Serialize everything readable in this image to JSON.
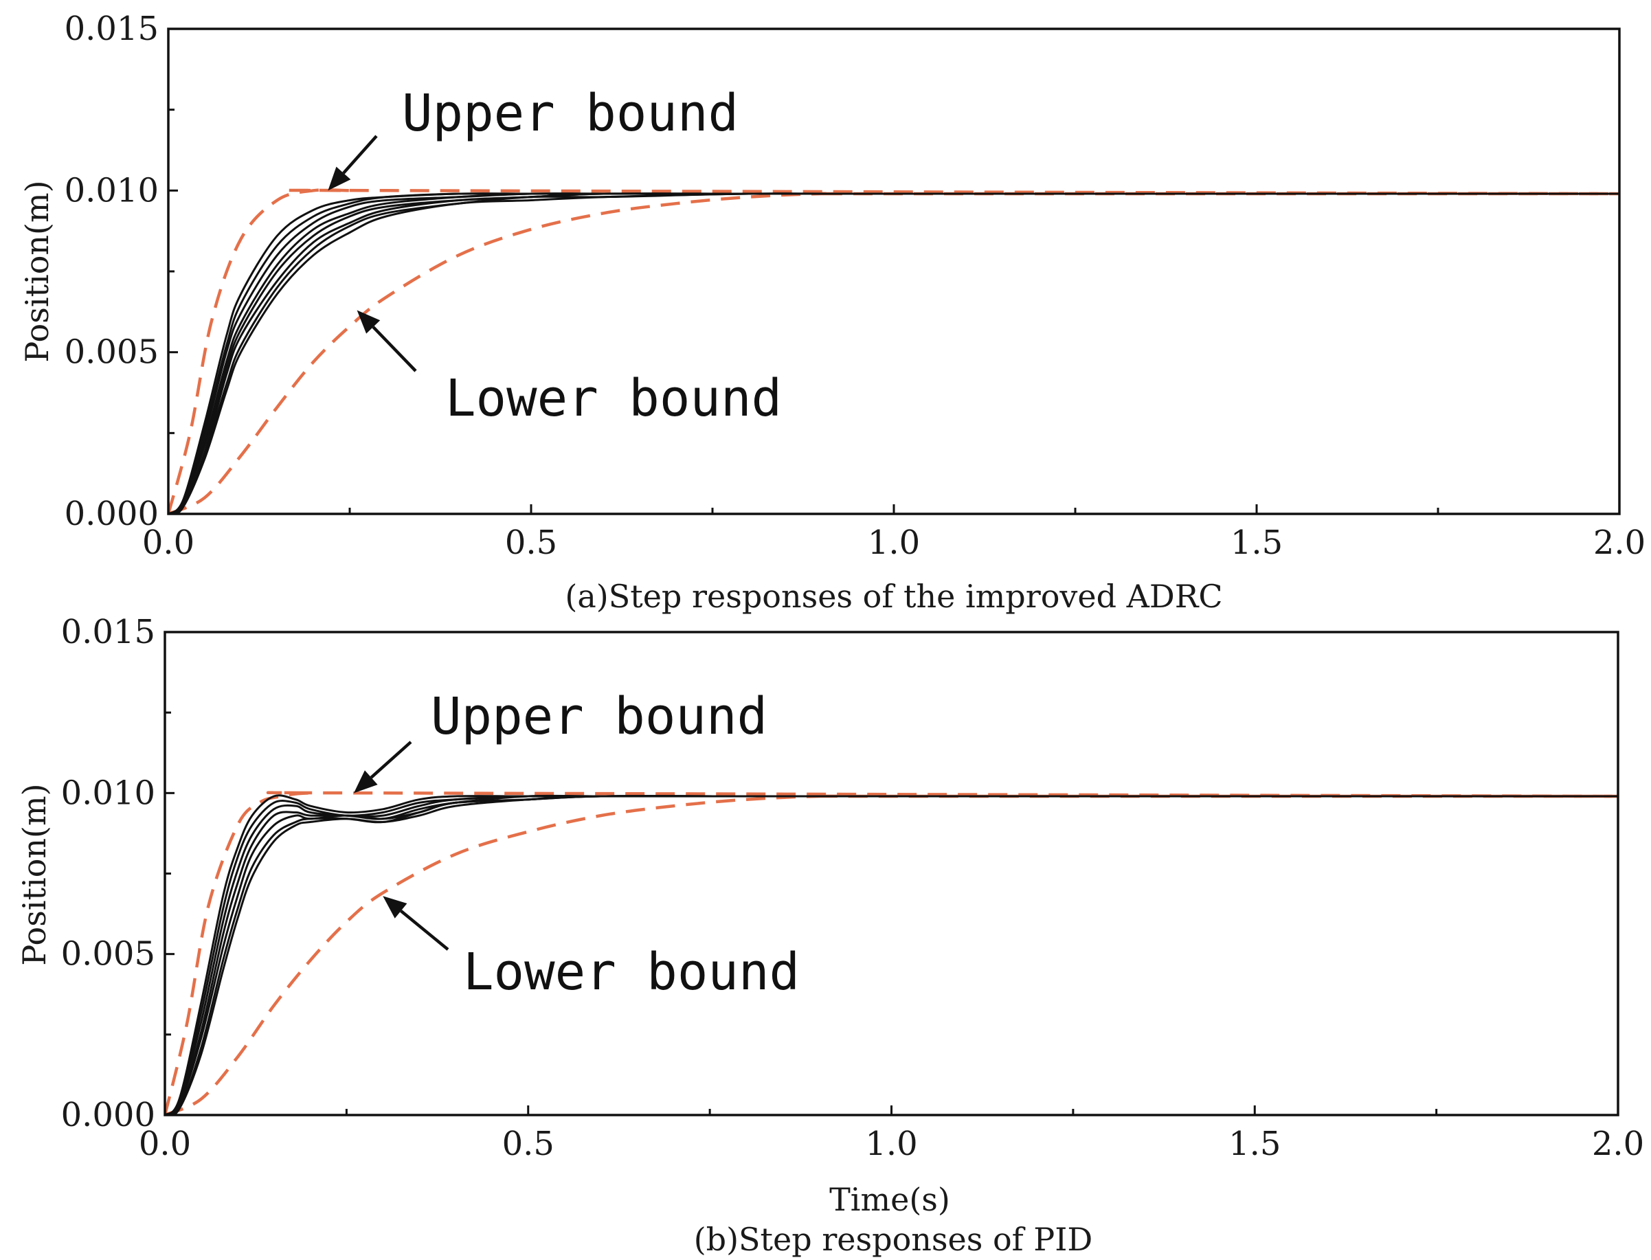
{
  "colors": {
    "bound": "#e4704a",
    "response": "#111111",
    "axis": "#111111"
  },
  "chart_data": [
    {
      "type": "line",
      "caption": "(a)Step responses of the improved ADRC",
      "xlabel": "",
      "ylabel": "Position(m)",
      "xlim": [
        0,
        2
      ],
      "ylim": [
        0,
        0.015
      ],
      "x_ticks": [
        "0.0",
        "0.5",
        "1.0",
        "1.5",
        "2.0"
      ],
      "y_ticks": [
        "0.000",
        "0.005",
        "0.010",
        "0.015"
      ],
      "grid": false,
      "annotations": [
        {
          "text": "Upper bound",
          "points_to": {
            "x": 0.22,
            "y": 0.01
          }
        },
        {
          "text": "Lower bound",
          "points_to": {
            "x": 0.26,
            "y": 0.0063
          }
        }
      ],
      "bounds": {
        "upper": {
          "x": [
            0,
            0.03,
            0.06,
            0.1,
            0.15,
            0.2,
            0.25,
            0.3,
            2.0
          ],
          "y": [
            0,
            0.0025,
            0.006,
            0.0085,
            0.0097,
            0.01,
            0.01,
            0.01,
            0.0099
          ]
        },
        "lower": {
          "x": [
            0,
            0.05,
            0.1,
            0.15,
            0.2,
            0.25,
            0.3,
            0.4,
            0.5,
            0.6,
            0.7,
            0.8,
            0.9,
            1.0,
            2.0
          ],
          "y": [
            0,
            0.0005,
            0.0018,
            0.0033,
            0.0047,
            0.0058,
            0.0067,
            0.008,
            0.0088,
            0.0093,
            0.0096,
            0.0098,
            0.0099,
            0.0099,
            0.0099
          ]
        }
      },
      "responses": {
        "x": [
          0,
          0.02,
          0.05,
          0.08,
          0.1,
          0.15,
          0.2,
          0.25,
          0.3,
          0.4,
          0.5,
          0.6,
          0.8,
          1.0,
          2.0
        ],
        "series": [
          {
            "y": [
              0,
              0.0004,
              0.0028,
              0.0055,
              0.0068,
              0.0086,
              0.0094,
              0.0097,
              0.0098,
              0.0099,
              0.0099,
              0.0099,
              0.0099,
              0.0099,
              0.0099
            ]
          },
          {
            "y": [
              0,
              0.0004,
              0.0026,
              0.0052,
              0.0065,
              0.0083,
              0.0092,
              0.0096,
              0.0098,
              0.0099,
              0.0099,
              0.0099,
              0.0099,
              0.0099,
              0.0099
            ]
          },
          {
            "y": [
              0,
              0.0003,
              0.0024,
              0.005,
              0.0062,
              0.008,
              0.009,
              0.0095,
              0.0097,
              0.0098,
              0.0099,
              0.0099,
              0.0099,
              0.0099,
              0.0099
            ]
          },
          {
            "y": [
              0,
              0.0003,
              0.0022,
              0.0047,
              0.0059,
              0.0077,
              0.0088,
              0.0093,
              0.0096,
              0.0098,
              0.0099,
              0.0099,
              0.0099,
              0.0099,
              0.0099
            ]
          },
          {
            "y": [
              0,
              0.0003,
              0.0021,
              0.0045,
              0.0057,
              0.0075,
              0.0086,
              0.0092,
              0.0095,
              0.0097,
              0.0098,
              0.0099,
              0.0099,
              0.0099,
              0.0099
            ]
          },
          {
            "y": [
              0,
              0.0002,
              0.0019,
              0.0043,
              0.0055,
              0.0072,
              0.0084,
              0.009,
              0.0094,
              0.0097,
              0.0098,
              0.0099,
              0.0099,
              0.0099,
              0.0099
            ]
          },
          {
            "y": [
              0,
              0.0002,
              0.0018,
              0.004,
              0.0052,
              0.007,
              0.0082,
              0.0089,
              0.0093,
              0.0096,
              0.0098,
              0.0098,
              0.0099,
              0.0099,
              0.0099
            ]
          },
          {
            "y": [
              0,
              0.0002,
              0.0017,
              0.0038,
              0.005,
              0.0068,
              0.008,
              0.0087,
              0.0092,
              0.0096,
              0.0097,
              0.0098,
              0.0099,
              0.0099,
              0.0099
            ]
          }
        ]
      }
    },
    {
      "type": "line",
      "caption": "(b)Step responses of PID",
      "xlabel": "Time(s)",
      "ylabel": "Position(m)",
      "xlim": [
        0,
        2
      ],
      "ylim": [
        0,
        0.015
      ],
      "x_ticks": [
        "0.0",
        "0.5",
        "1.0",
        "1.5",
        "2.0"
      ],
      "y_ticks": [
        "0.000",
        "0.005",
        "0.010",
        "0.015"
      ],
      "grid": false,
      "annotations": [
        {
          "text": "Upper bound",
          "points_to": {
            "x": 0.26,
            "y": 0.01
          }
        },
        {
          "text": "Lower bound",
          "points_to": {
            "x": 0.3,
            "y": 0.0068
          }
        }
      ],
      "bounds": {
        "upper": {
          "x": [
            0,
            0.03,
            0.06,
            0.1,
            0.13,
            0.16,
            0.2,
            0.3,
            2.0
          ],
          "y": [
            0,
            0.0028,
            0.0065,
            0.009,
            0.0097,
            0.0099,
            0.01,
            0.01,
            0.0099
          ]
        },
        "lower": {
          "x": [
            0,
            0.05,
            0.1,
            0.15,
            0.2,
            0.25,
            0.3,
            0.4,
            0.5,
            0.6,
            0.7,
            0.8,
            0.9,
            1.0,
            2.0
          ],
          "y": [
            0,
            0.0005,
            0.0018,
            0.0034,
            0.0048,
            0.006,
            0.0069,
            0.0081,
            0.0088,
            0.0093,
            0.0096,
            0.0098,
            0.0099,
            0.0099,
            0.0099
          ]
        }
      },
      "responses": {
        "x": [
          0,
          0.02,
          0.05,
          0.08,
          0.1,
          0.12,
          0.15,
          0.18,
          0.2,
          0.25,
          0.3,
          0.35,
          0.4,
          0.5,
          0.6,
          0.8,
          1.0,
          2.0
        ],
        "series": [
          {
            "y": [
              0,
              0.0005,
              0.0035,
              0.0068,
              0.0083,
              0.0093,
              0.0099,
              0.0098,
              0.0096,
              0.0094,
              0.0095,
              0.0098,
              0.0099,
              0.0099,
              0.0099,
              0.0099,
              0.0099,
              0.0099
            ]
          },
          {
            "y": [
              0,
              0.0004,
              0.0032,
              0.0064,
              0.008,
              0.009,
              0.0097,
              0.0097,
              0.0095,
              0.0093,
              0.0094,
              0.0097,
              0.0098,
              0.0099,
              0.0099,
              0.0099,
              0.0099,
              0.0099
            ]
          },
          {
            "y": [
              0,
              0.0004,
              0.0029,
              0.006,
              0.0076,
              0.0087,
              0.0095,
              0.0096,
              0.0094,
              0.0093,
              0.0093,
              0.0096,
              0.0098,
              0.0099,
              0.0099,
              0.0099,
              0.0099,
              0.0099
            ]
          },
          {
            "y": [
              0,
              0.0003,
              0.0026,
              0.0056,
              0.0072,
              0.0084,
              0.0093,
              0.0094,
              0.0093,
              0.0093,
              0.0092,
              0.0095,
              0.0097,
              0.0099,
              0.0099,
              0.0099,
              0.0099,
              0.0099
            ]
          },
          {
            "y": [
              0,
              0.0003,
              0.0024,
              0.0052,
              0.0068,
              0.0081,
              0.009,
              0.0093,
              0.0092,
              0.0093,
              0.0092,
              0.0094,
              0.0097,
              0.0098,
              0.0099,
              0.0099,
              0.0099,
              0.0099
            ]
          },
          {
            "y": [
              0,
              0.0002,
              0.0021,
              0.0048,
              0.0064,
              0.0077,
              0.0087,
              0.0091,
              0.0092,
              0.0092,
              0.0091,
              0.0094,
              0.0097,
              0.0098,
              0.0099,
              0.0099,
              0.0099,
              0.0099
            ]
          },
          {
            "y": [
              0,
              0.0002,
              0.0019,
              0.0045,
              0.0061,
              0.0074,
              0.0085,
              0.009,
              0.0091,
              0.0092,
              0.0091,
              0.0093,
              0.0096,
              0.0098,
              0.0099,
              0.0099,
              0.0099,
              0.0099
            ]
          }
        ]
      }
    }
  ]
}
